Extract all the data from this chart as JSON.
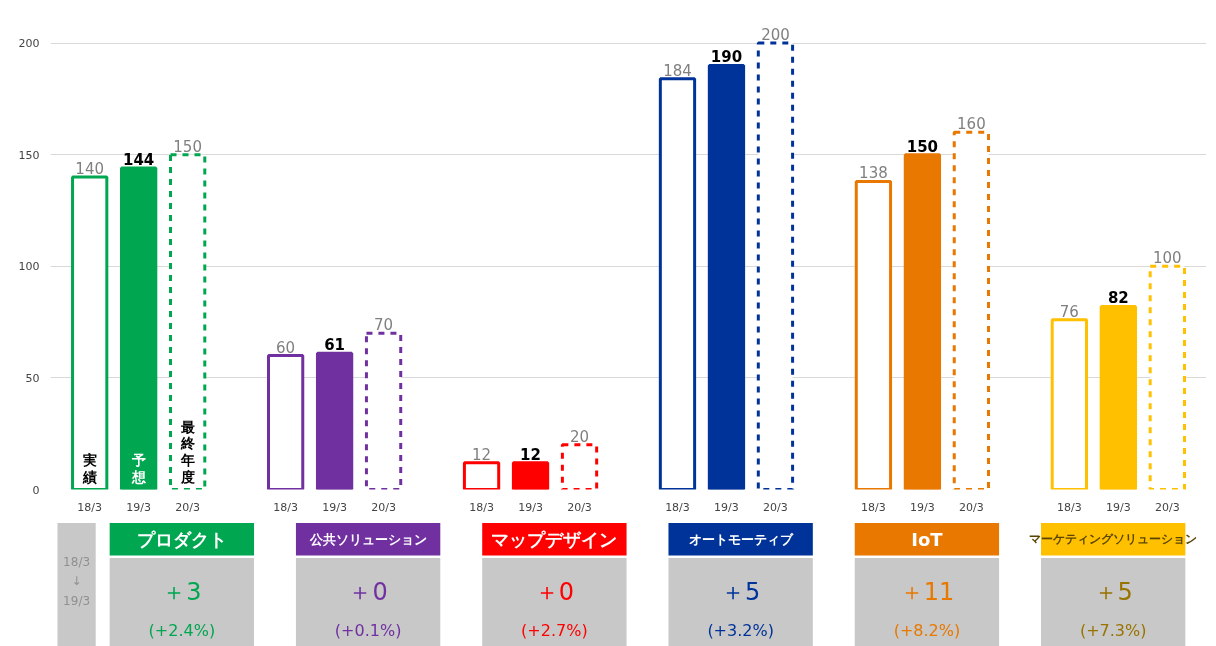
{
  "chart_data": {
    "type": "bar",
    "categories": [
      "18/3",
      "19/3",
      "20/3",
      "18/3",
      "19/3",
      "20/3",
      "18/3",
      "19/3",
      "20/3",
      "18/3",
      "19/3",
      "20/3",
      "18/3",
      "19/3",
      "20/3",
      "18/3",
      "19/3",
      "20/3"
    ],
    "series": [
      {
        "name": "実績",
        "line_style": "solid",
        "colors": [
          "#00a650",
          "#00a650",
          "#00a650",
          "#7030a0",
          "#7030a0",
          "#7030a0",
          "#ff0000",
          "#ff0000",
          "#ff0000",
          "#003399",
          "#003399",
          "#003399",
          "#e87800",
          "#e87800",
          "#e87800",
          "#ffc000",
          "#ffc000",
          "#ffc000"
        ],
        "values": [
          140,
          null,
          null,
          60,
          null,
          null,
          12,
          null,
          null,
          184,
          null,
          null,
          138,
          null,
          null,
          76,
          null,
          null
        ]
      },
      {
        "name": "予想",
        "line_style": "solid",
        "colors": [
          "#00a650",
          "#00a650",
          "#00a650",
          "#7030a0",
          "#7030a0",
          "#7030a0",
          "#ff0000",
          "#ff0000",
          "#ff0000",
          "#003399",
          "#003399",
          "#003399",
          "#e87800",
          "#e87800",
          "#e87800",
          "#ffc000",
          "#ffc000",
          "#ffc000"
        ],
        "values": [
          null,
          144,
          null,
          null,
          61,
          null,
          null,
          12,
          null,
          null,
          190,
          null,
          null,
          150,
          null,
          null,
          82,
          null
        ]
      },
      {
        "name": "最終年度",
        "line_style": "dashed",
        "colors": [
          "#00a650",
          "#00a650",
          "#00a650",
          "#7030a0",
          "#7030a0",
          "#7030a0",
          "#ff0000",
          "#ff0000",
          "#ff0000",
          "#003399",
          "#003399",
          "#003399",
          "#e87800",
          "#e87800",
          "#e87800",
          "#ffc000",
          "#ffc000",
          "#ffc000"
        ],
        "values": [
          null,
          null,
          150,
          null,
          null,
          70,
          null,
          null,
          20,
          null,
          null,
          200,
          null,
          null,
          160,
          null,
          null,
          100
        ]
      }
    ],
    "ylim": [
      0,
      200
    ],
    "yticks": [
      0,
      50,
      100,
      150,
      200
    ],
    "grid": "y",
    "data_labels": true,
    "annotations": [
      "18/3\n↓\n19/3",
      "プロダクト",
      "＋3",
      "(+2.4%)",
      "公共ソリューション",
      "＋0",
      "(+0.1%)",
      "マップデザイン",
      "＋0",
      "(+2.7%)",
      "オートモーティブ",
      "＋5",
      "(+3.2%)",
      "IoT",
      "＋11",
      "(+8.2%)",
      "マーケティングソリューション",
      "＋5",
      "(+7.3%)"
    ]
  }
}
